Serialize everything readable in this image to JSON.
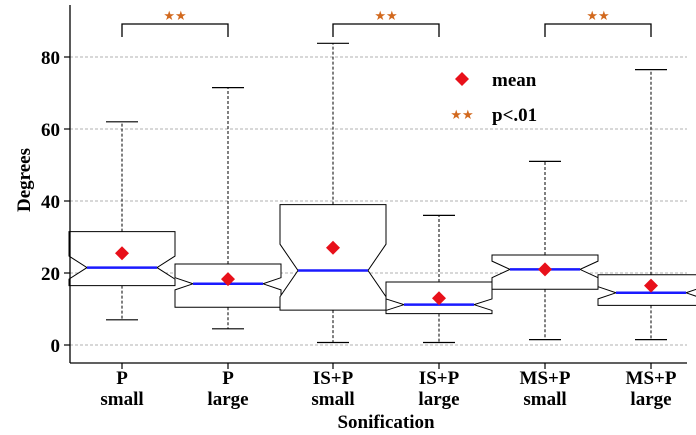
{
  "chart_data": {
    "type": "boxplot",
    "notched": true,
    "xlabel": "Sonification",
    "ylabel": "Degrees",
    "ylim": [
      -3,
      88
    ],
    "yticks": [
      0,
      20,
      40,
      60,
      80
    ],
    "grid": "horizontal dashed",
    "categories": [
      [
        "P",
        "small"
      ],
      [
        "P",
        "large"
      ],
      [
        "IS+P",
        "small"
      ],
      [
        "IS+P",
        "large"
      ],
      [
        "MS+P",
        "small"
      ],
      [
        "MS+P",
        "large"
      ]
    ],
    "boxes": [
      {
        "whisker_low": 7,
        "q1": 16.5,
        "median": 21.5,
        "q3": 31.5,
        "whisker_high": 62,
        "notch_low": 18.3,
        "notch_high": 24.7,
        "mean": 25.5
      },
      {
        "whisker_low": 4.5,
        "q1": 10.5,
        "median": 17,
        "q3": 22.5,
        "whisker_high": 71.5,
        "notch_low": 15.3,
        "notch_high": 18.7,
        "mean": 18.3
      },
      {
        "whisker_low": 0.7,
        "q1": 9.7,
        "median": 20.7,
        "q3": 39,
        "whisker_high": 83.8,
        "notch_low": 13.4,
        "notch_high": 28,
        "mean": 27
      },
      {
        "whisker_low": 0.7,
        "q1": 8.7,
        "median": 11.2,
        "q3": 17.5,
        "whisker_high": 36,
        "notch_low": 9.6,
        "notch_high": 12.8,
        "mean": 13
      },
      {
        "whisker_low": 1.5,
        "q1": 15.5,
        "median": 21,
        "q3": 25,
        "whisker_high": 51,
        "notch_low": 18.7,
        "notch_high": 23.3,
        "mean": 21
      },
      {
        "whisker_low": 1.5,
        "q1": 11,
        "median": 14.5,
        "q3": 19.5,
        "whisker_high": 76.5,
        "notch_low": 12.8,
        "notch_high": 16.2,
        "mean": 16.5
      }
    ],
    "significance": [
      {
        "pair": [
          0,
          1
        ],
        "marker": "★★"
      },
      {
        "pair": [
          2,
          3
        ],
        "marker": "★★"
      },
      {
        "pair": [
          4,
          5
        ],
        "marker": "★★"
      }
    ],
    "legend": {
      "placement": "upper-center",
      "items": [
        {
          "label": "mean",
          "marker": "diamond",
          "color": "#e8101a"
        },
        {
          "label": "p<.01",
          "marker": "★★",
          "color": "#d2691e"
        }
      ]
    },
    "colors": {
      "box": "#000000",
      "median": "#1a1aff",
      "mean": "#e8101a",
      "star": "#d2691e",
      "grid": "#b0b0b0",
      "whisker": "#000000"
    }
  }
}
